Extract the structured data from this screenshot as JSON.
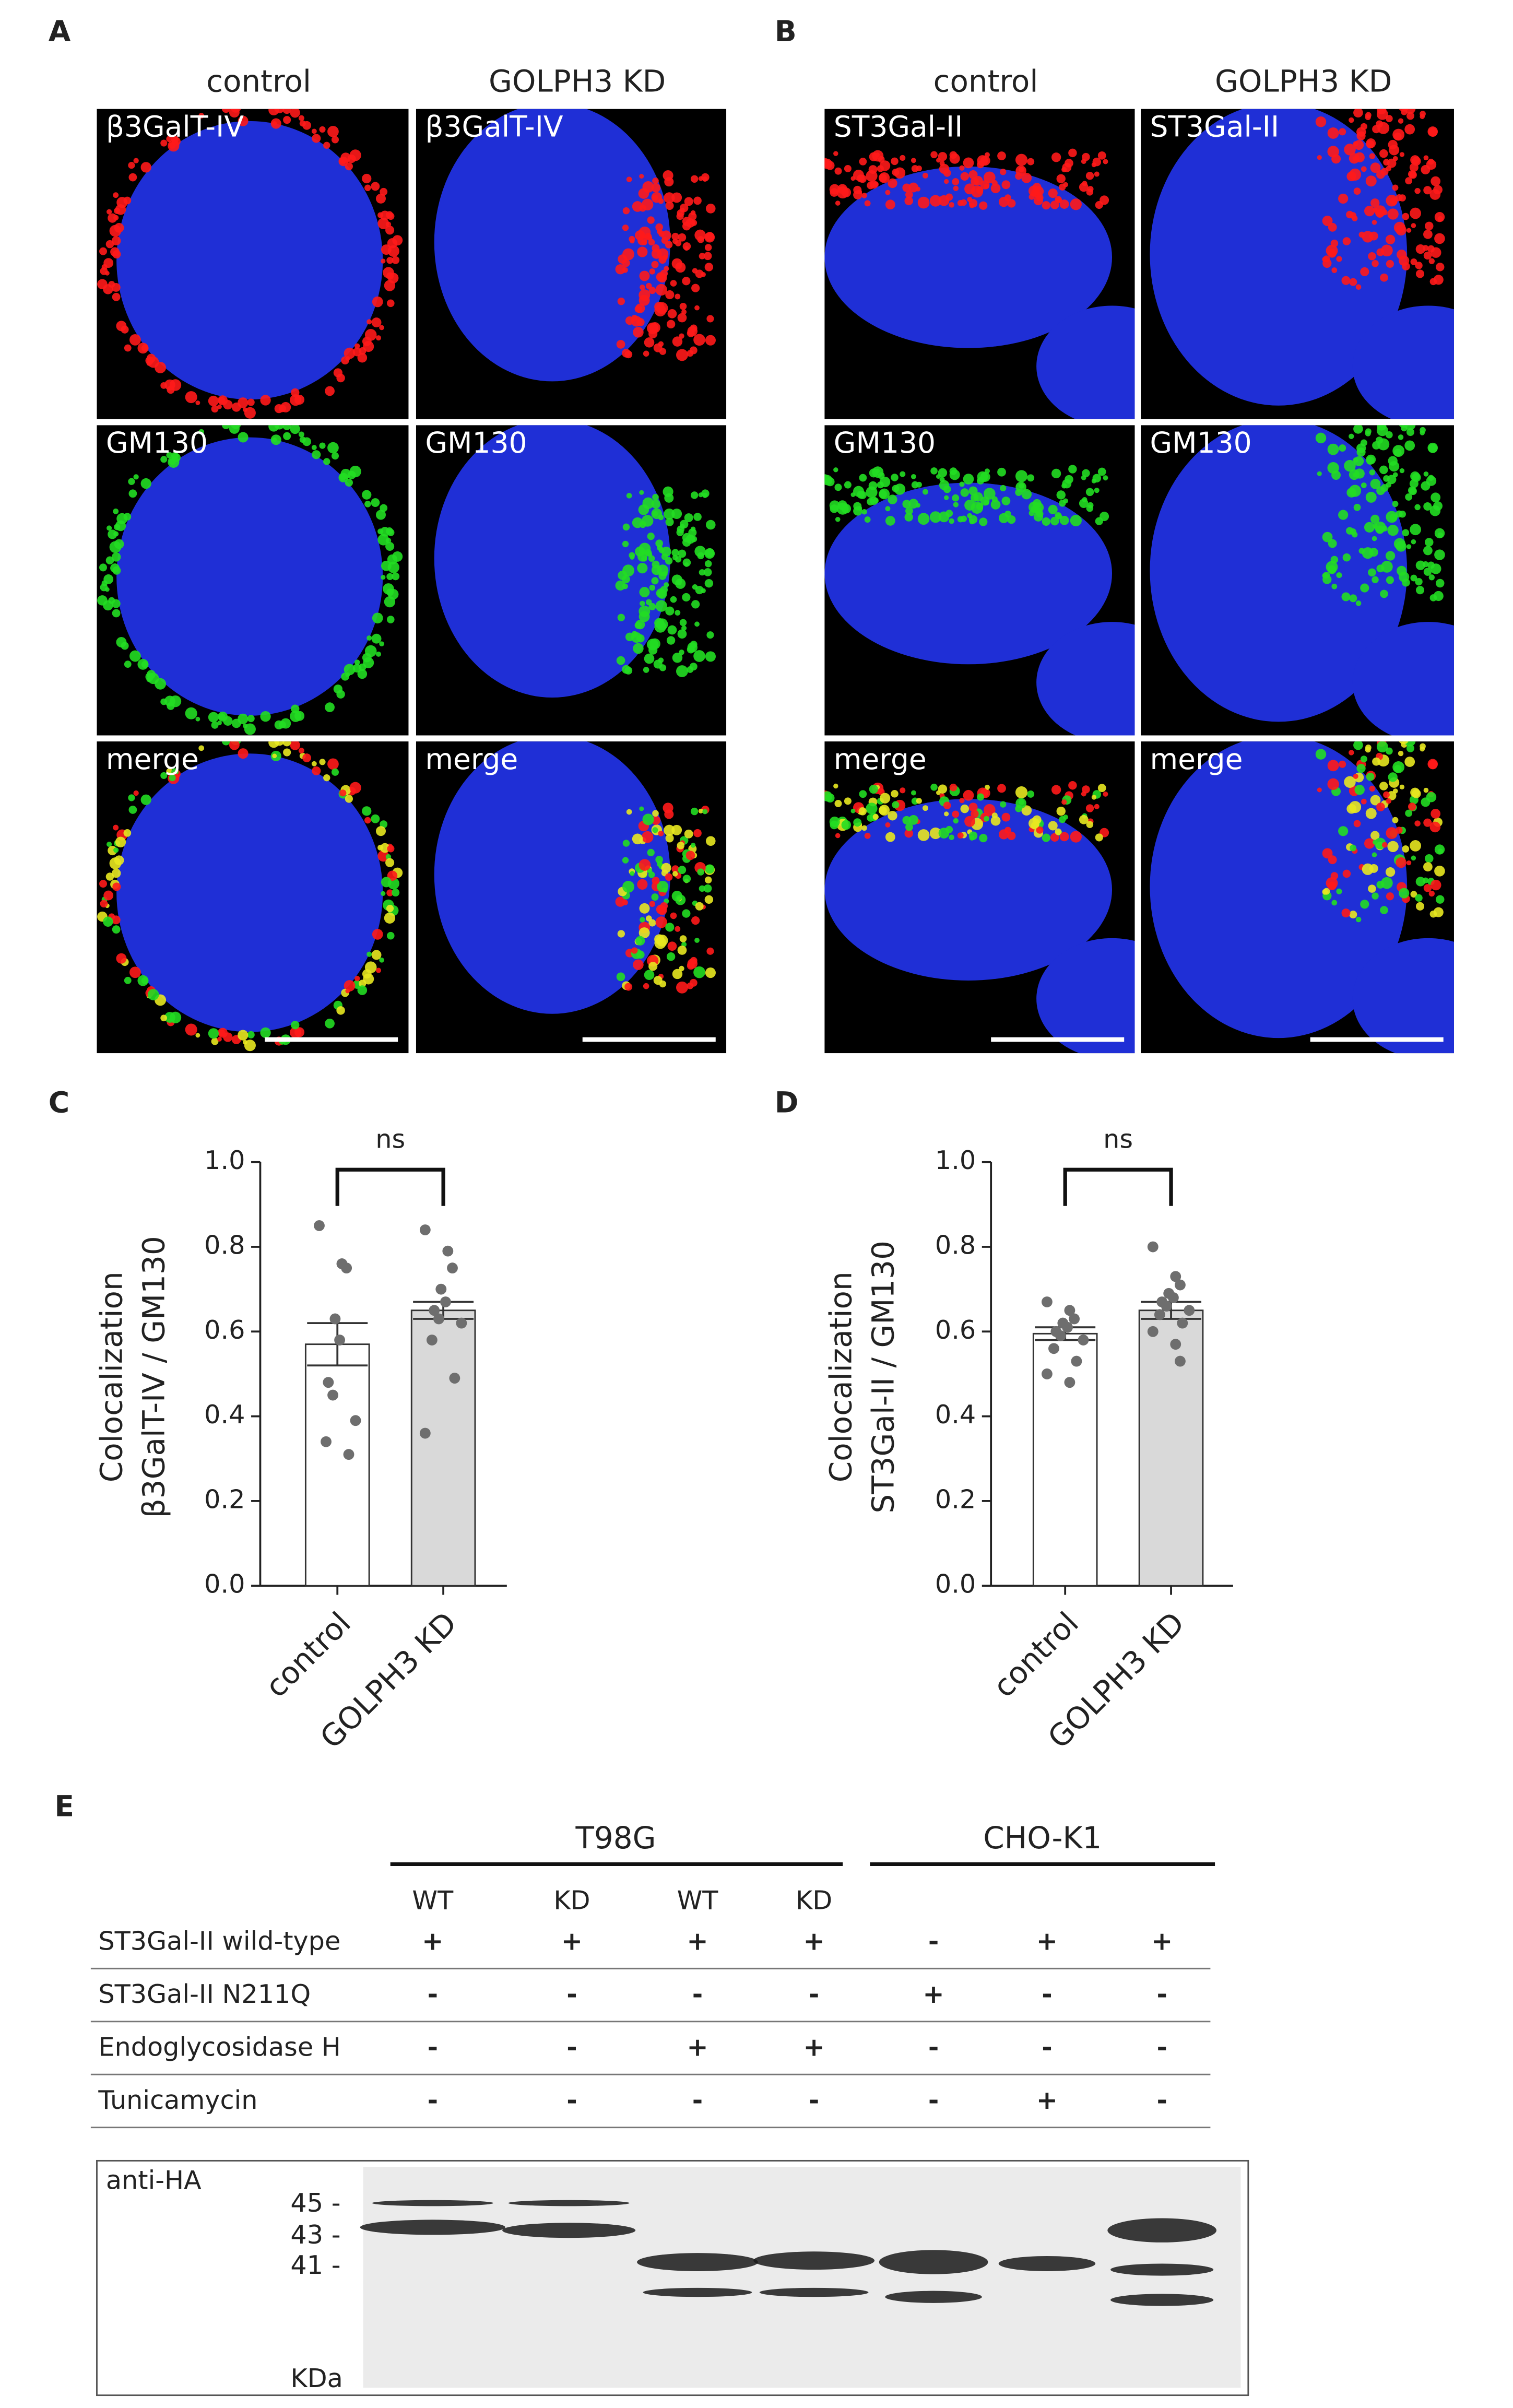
{
  "panel_labels": [
    "A",
    "B",
    "C",
    "D",
    "E"
  ],
  "microscopy": [
    {
      "columns": [
        "control",
        "GOLPH3 KD"
      ],
      "rows": [
        [
          "β3GalT-IV",
          "β3GalT-IV"
        ],
        [
          "GM130",
          "GM130"
        ],
        [
          "merge",
          "merge"
        ]
      ]
    },
    {
      "columns": [
        "control",
        "GOLPH3 KD"
      ],
      "rows": [
        [
          "ST3Gal-II",
          "ST3Gal-II"
        ],
        [
          "GM130",
          "GM130"
        ],
        [
          "merge",
          "merge"
        ]
      ]
    }
  ],
  "chart_data": [
    {
      "type": "bar",
      "ylabel": [
        "Colocalization",
        "β3GalT-IV / GM130"
      ],
      "categories": [
        "control",
        "GOLPH3 KD"
      ],
      "values": [
        0.57,
        0.65
      ],
      "errors": [
        0.05,
        0.02
      ],
      "colors": [
        "#ffffff",
        "#d9d9d9"
      ],
      "point_color": "#6e6e6e",
      "points": [
        [
          0.85,
          0.76,
          0.75,
          0.63,
          0.58,
          0.48,
          0.45,
          0.39,
          0.34,
          0.31
        ],
        [
          0.84,
          0.79,
          0.75,
          0.7,
          0.67,
          0.65,
          0.63,
          0.62,
          0.58,
          0.49,
          0.36
        ]
      ],
      "annotation": "ns",
      "ylim": [
        0,
        1
      ],
      "yticks": [
        {
          "value": 0,
          "label": "0.0"
        },
        0.2,
        0.4,
        0.6,
        0.8,
        {
          "value": 1,
          "label": "1.0"
        }
      ]
    },
    {
      "type": "bar",
      "ylabel": [
        "Colocalization",
        "ST3Gal-II / GM130"
      ],
      "categories": [
        "control",
        "GOLPH3 KD"
      ],
      "values": [
        0.595,
        0.65
      ],
      "errors": [
        0.015,
        0.02
      ],
      "colors": [
        "#ffffff",
        "#d9d9d9"
      ],
      "point_color": "#6e6e6e",
      "points": [
        [
          0.67,
          0.65,
          0.63,
          0.62,
          0.61,
          0.6,
          0.59,
          0.58,
          0.56,
          0.53,
          0.5,
          0.48
        ],
        [
          0.8,
          0.73,
          0.71,
          0.69,
          0.68,
          0.67,
          0.66,
          0.65,
          0.64,
          0.62,
          0.6,
          0.57,
          0.53
        ]
      ],
      "annotation": "ns",
      "ylim": [
        0,
        1
      ],
      "yticks": [
        {
          "value": 0,
          "label": "0.0"
        },
        0.2,
        0.4,
        0.6,
        0.8,
        {
          "value": 1,
          "label": "1.0"
        }
      ]
    }
  ],
  "table": {
    "groups": [
      "T98G",
      "CHO-K1"
    ],
    "columns": [
      "WT",
      "KD",
      "WT",
      "KD"
    ],
    "rows": [
      [
        "ST3Gal-II wild-type",
        "+",
        "+",
        "+",
        "+",
        "-",
        "+",
        "+"
      ],
      [
        "ST3Gal-II N211Q",
        "-",
        "-",
        "-",
        "-",
        "+",
        "-",
        "-"
      ],
      [
        "Endoglycosidase H",
        "-",
        "-",
        "+",
        "+",
        "-",
        "-",
        "-"
      ],
      [
        "Tunicamycin",
        "-",
        "-",
        "-",
        "-",
        "-",
        "+",
        "-"
      ]
    ]
  },
  "blot": {
    "antibody": "anti-HA",
    "markers": [
      "45 -",
      "43 -",
      "41 -"
    ],
    "unit": "KDa"
  }
}
